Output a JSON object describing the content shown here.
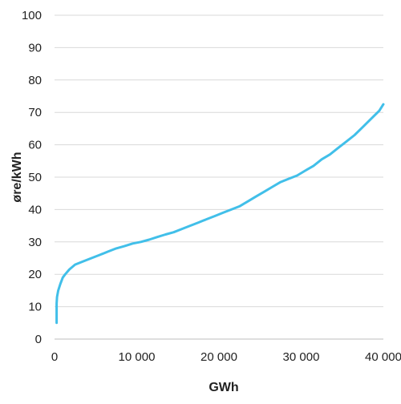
{
  "chart_data": {
    "type": "line",
    "xlabel": "GWh",
    "ylabel": "øre/kWh",
    "xlim": [
      0,
      40000
    ],
    "ylim": [
      0,
      100
    ],
    "x_ticks": [
      0,
      10000,
      20000,
      30000,
      40000
    ],
    "x_tick_labels": [
      "0",
      "10 000",
      "20 000",
      "30 000",
      "40 000"
    ],
    "y_ticks": [
      0,
      10,
      20,
      30,
      40,
      50,
      60,
      70,
      80,
      90,
      100
    ],
    "y_tick_labels": [
      "0",
      "10",
      "20",
      "30",
      "40",
      "50",
      "60",
      "70",
      "80",
      "90",
      "100"
    ],
    "grid": "horizontal",
    "colors": {
      "line": "#41bfe9",
      "grid": "#d9d9d9",
      "text": "#222222"
    },
    "series": [
      {
        "x": [
          250,
          250,
          300,
          450,
          700,
          1000,
          1300,
          1800,
          2500,
          3500,
          4500,
          5500,
          6500,
          7500,
          8500,
          9500,
          10500,
          11500,
          12500,
          13500,
          14500,
          15500,
          16500,
          17500,
          18500,
          19500,
          20500,
          21500,
          22500,
          23500,
          24500,
          25500,
          26500,
          27500,
          28500,
          29500,
          30500,
          31500,
          32500,
          33500,
          34500,
          35500,
          36500,
          37500,
          38500,
          39500,
          40000
        ],
        "values": [
          5,
          11,
          13,
          15,
          17,
          19,
          20,
          21.5,
          23,
          24,
          25,
          26,
          27,
          28,
          28.7,
          29.5,
          30,
          30.7,
          31.5,
          32.3,
          33,
          34,
          35,
          36,
          37,
          38,
          39,
          40,
          41,
          42.5,
          44,
          45.5,
          47,
          48.5,
          49.5,
          50.5,
          52,
          53.5,
          55.5,
          57,
          59,
          61,
          63,
          65.5,
          68,
          70.5,
          72.5
        ]
      }
    ]
  }
}
